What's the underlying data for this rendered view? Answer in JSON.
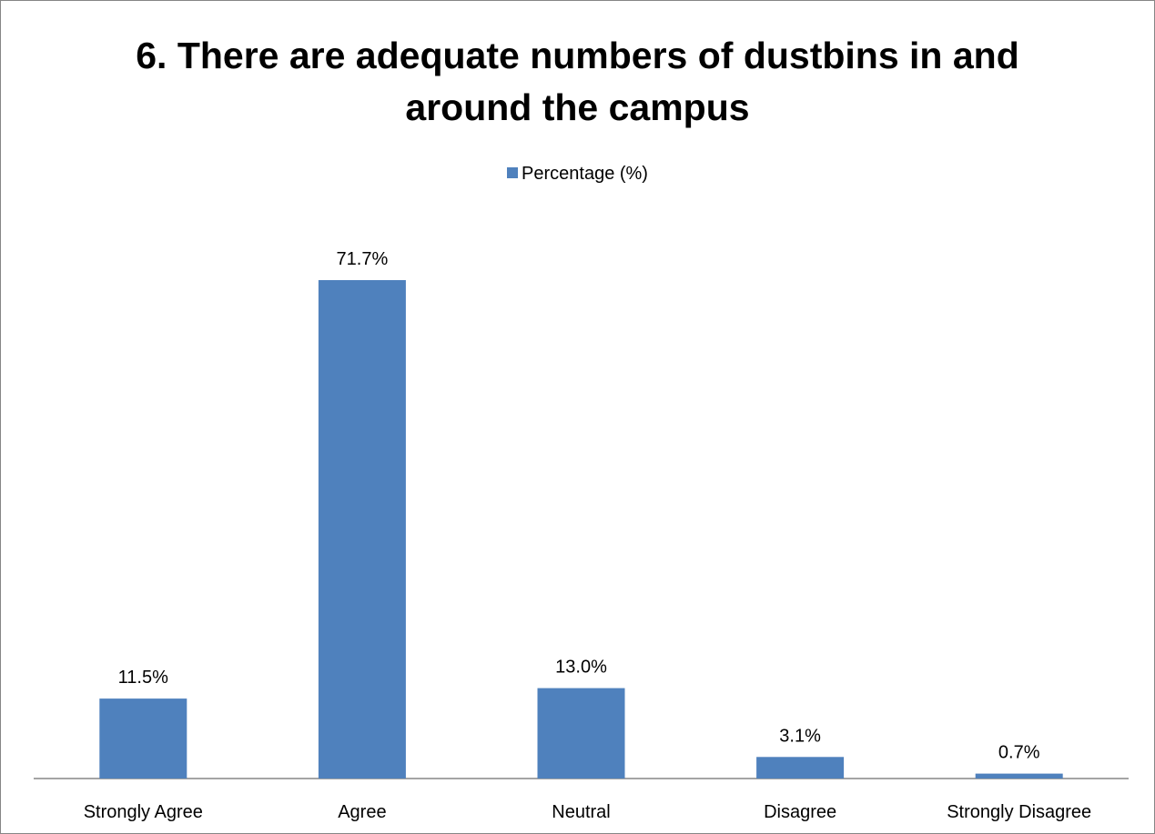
{
  "chart_data": {
    "type": "bar",
    "title_lines": [
      "6. There are adequate numbers of dustbins in and",
      "around the campus"
    ],
    "categories": [
      "Strongly Agree",
      "Agree",
      "Neutral",
      "Disagree",
      "Strongly Disagree"
    ],
    "series": [
      {
        "name": "Percentage (%)",
        "values": [
          11.5,
          71.7,
          13.0,
          3.1,
          0.7
        ],
        "labels": [
          "11.5%",
          "71.7%",
          "13.0%",
          "3.1%",
          "0.7%"
        ],
        "color": "#4f81bd"
      }
    ],
    "ylim": [
      0,
      80
    ],
    "grid": false,
    "legend_position": "top"
  }
}
